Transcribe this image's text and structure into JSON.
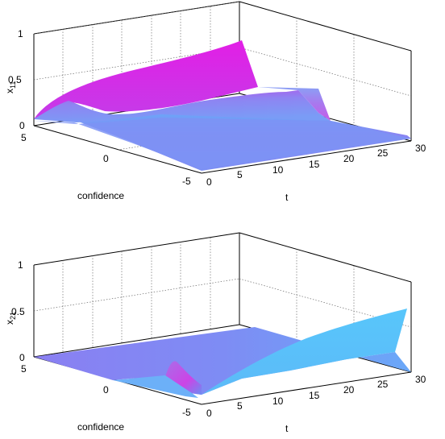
{
  "chart_data": [
    {
      "type": "surface",
      "zlabel": "x",
      "zlabel_sub": "11",
      "xlabel": "t",
      "ylabel": "confidence",
      "x_ticks": [
        "0",
        "5",
        "10",
        "15",
        "20",
        "25",
        "30"
      ],
      "y_ticks": [
        "5",
        "0",
        "-5"
      ],
      "z_ticks": [
        "0",
        "0.5",
        "1"
      ],
      "xlim": [
        0,
        30
      ],
      "ylim": [
        -5,
        5
      ],
      "zlim": [
        0,
        1
      ],
      "grid": true,
      "colors": {
        "high": "#e020e6",
        "mid": "#9b78f0",
        "low": "#5cc4fa"
      },
      "surface": {
        "t": [
          0,
          30
        ],
        "profile_at_t30": {
          "high_confidence": 0.92,
          "boundary_confidence": 1.5,
          "low_confidence": 0.08
        },
        "profile_at_t0": {
          "high_confidence": 0.1,
          "dip_confidence": 0.5,
          "dip_value": 0.33
        }
      }
    },
    {
      "type": "surface",
      "zlabel": "x",
      "zlabel_sub": "21",
      "xlabel": "t",
      "ylabel": "confidence",
      "x_ticks": [
        "0",
        "5",
        "10",
        "15",
        "20",
        "25",
        "30"
      ],
      "y_ticks": [
        "5",
        "0",
        "-5"
      ],
      "z_ticks": [
        "0",
        "0.5",
        "1"
      ],
      "xlim": [
        0,
        30
      ],
      "ylim": [
        -5,
        5
      ],
      "zlim": [
        0,
        1
      ],
      "grid": true,
      "colors": {
        "high": "#e020e6",
        "mid": "#9b78f0",
        "low": "#5cc4fa"
      },
      "surface": {
        "t": [
          0,
          30
        ],
        "low_confidence_growth_to": 0.53,
        "bump_near_t0": 0.28
      }
    }
  ]
}
